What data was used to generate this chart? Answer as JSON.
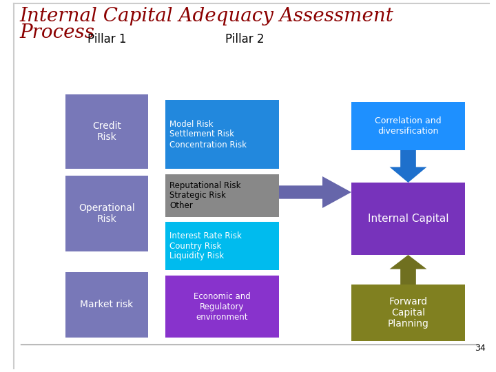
{
  "title_line1": "Internal Capital Adequacy Assessment",
  "title_line2": "Process",
  "title_color": "#8B0000",
  "title_fontsize": 20,
  "background_color": "#ffffff",
  "pillar1_label": "Pillar 1",
  "pillar2_label": "Pillar 2",
  "pillar_label_fontsize": 12,
  "p1_color": "#7878B8",
  "pillar1_boxes": [
    {
      "text": "Credit\nRisk"
    },
    {
      "text": "Operational\nRisk"
    },
    {
      "text": "Market risk"
    }
  ],
  "pillar2_boxes": [
    {
      "text": "Model Risk\nSettlement Risk\nConcentration Risk",
      "color": "#2288DD",
      "text_color": "white"
    },
    {
      "text": "Reputational Risk\nStrategic Risk\nOther",
      "color": "#888888",
      "text_color": "black"
    },
    {
      "text": "Interest Rate Risk\nCountry Risk\nLiquidity Risk",
      "color": "#00BBEE",
      "text_color": "white"
    },
    {
      "text": "Economic and\nRegulatory\nenvironment",
      "color": "#8833CC",
      "text_color": "white"
    }
  ],
  "right_boxes": [
    {
      "text": "Correlation and\ndiversification",
      "color": "#1E90FF",
      "text_color": "white"
    },
    {
      "text": "Internal Capital",
      "color": "#7733BB",
      "text_color": "white"
    },
    {
      "text": "Forward\nCapital\nPlanning",
      "color": "#808020",
      "text_color": "white"
    }
  ],
  "arrow_down_color": "#1E70CC",
  "arrow_right_color": "#6666AA",
  "arrow_up_color": "#707020",
  "page_number": "34",
  "line_color": "#999999"
}
